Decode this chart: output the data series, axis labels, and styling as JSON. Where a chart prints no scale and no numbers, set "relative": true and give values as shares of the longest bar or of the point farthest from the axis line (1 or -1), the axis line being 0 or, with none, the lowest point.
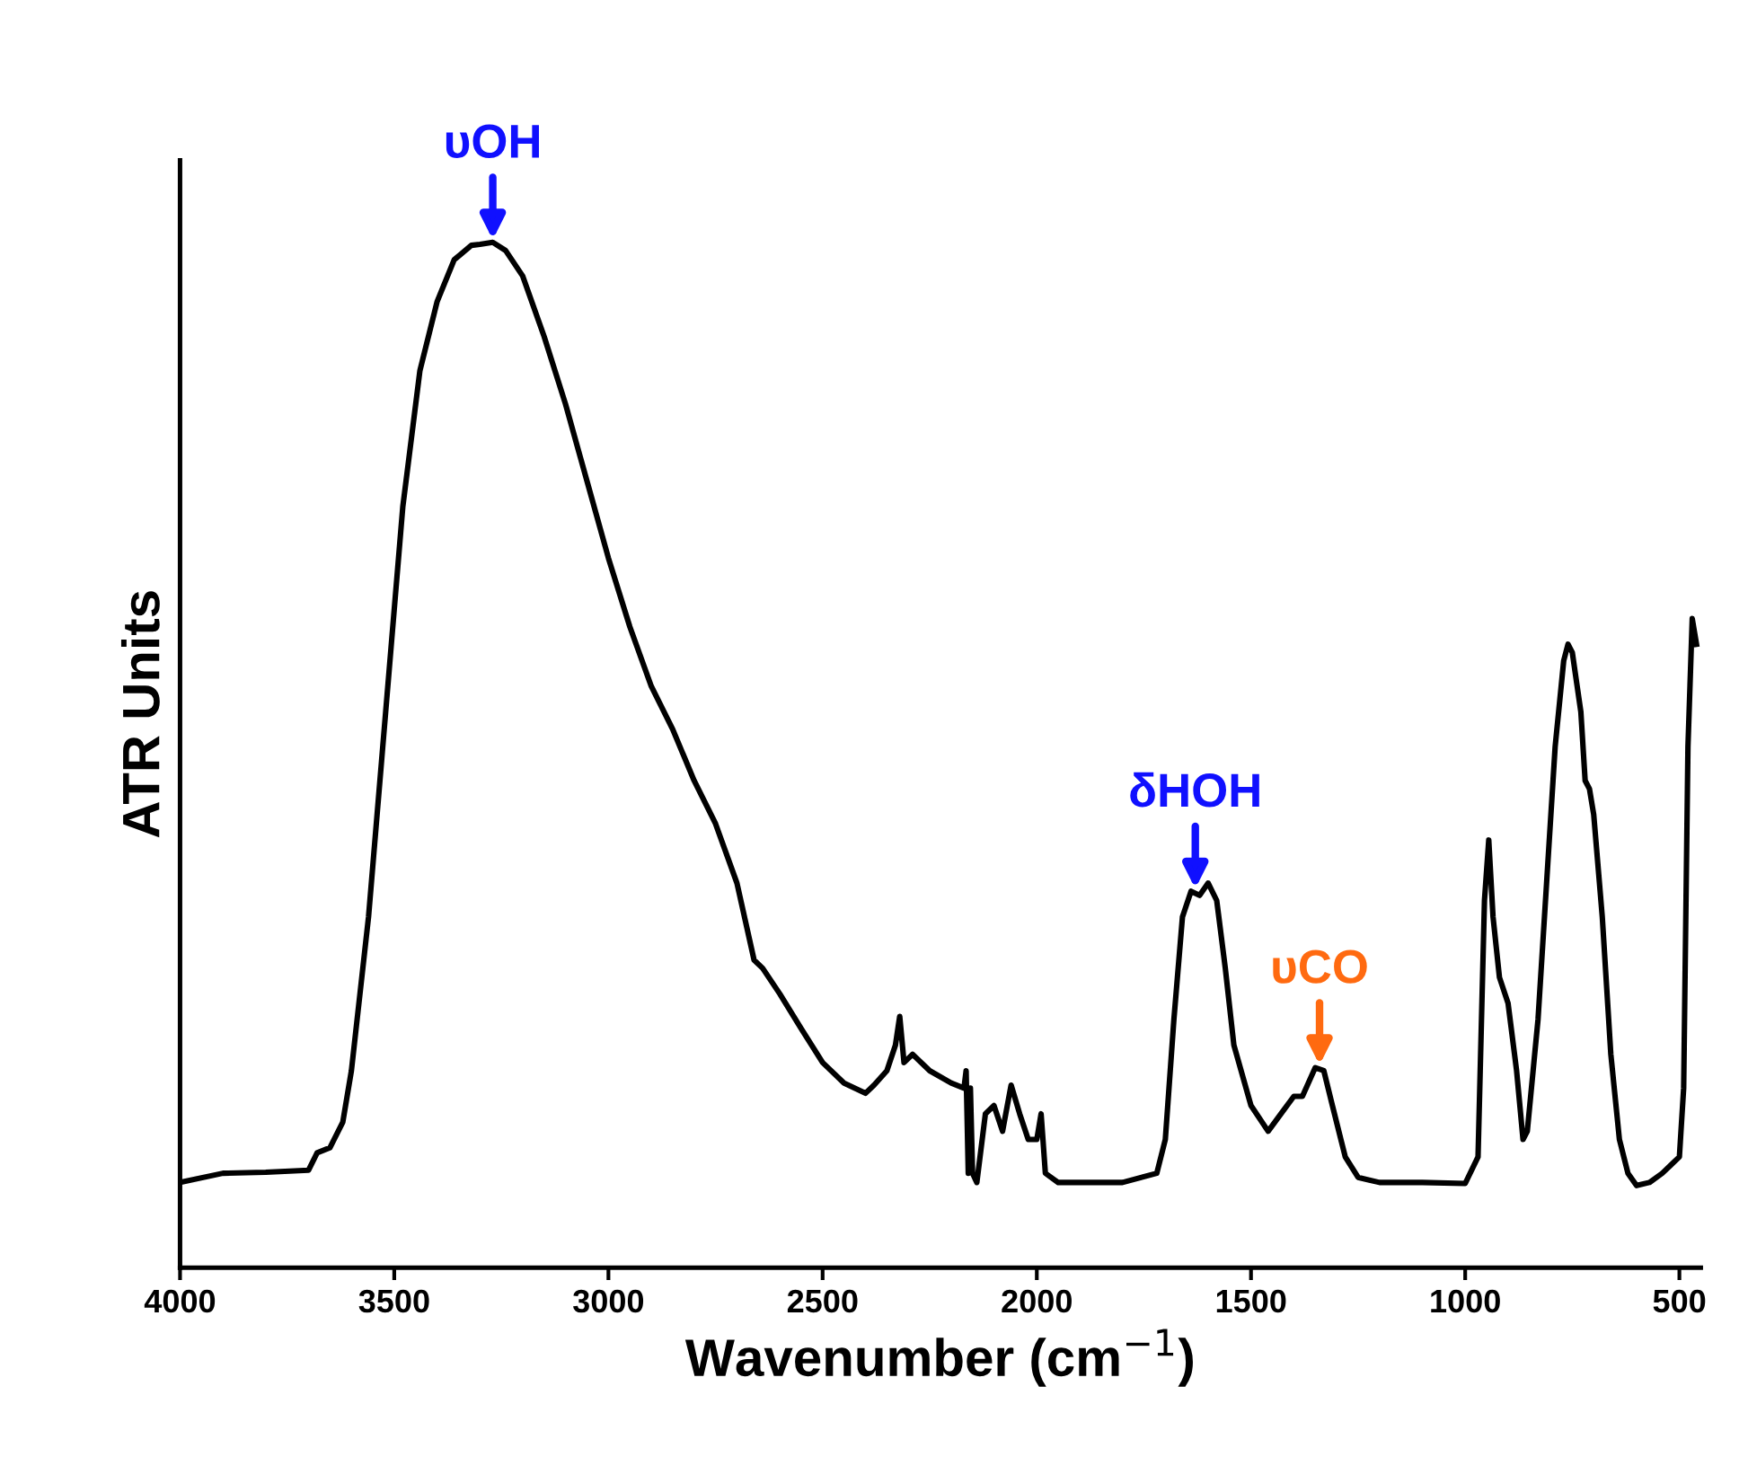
{
  "chart_data": {
    "type": "line",
    "relative": true,
    "xlabel": "Wavenumber (cm$^{−1}$)",
    "ylabel": "ATR Units",
    "xlim": [
      4000,
      450
    ],
    "xticks": [
      4000,
      3500,
      3000,
      2500,
      2000,
      1500,
      1000,
      500
    ],
    "tick_labels": "x",
    "grid": false,
    "legend": false,
    "series": [
      {
        "color": "#000000",
        "x": [
          4000,
          3900,
          3800,
          3700,
          3680,
          3650,
          3620,
          3600,
          3560,
          3520,
          3480,
          3440,
          3400,
          3360,
          3320,
          3300,
          3270,
          3240,
          3200,
          3150,
          3100,
          3050,
          3000,
          2950,
          2900,
          2850,
          2800,
          2750,
          2700,
          2660,
          2640,
          2600,
          2550,
          2500,
          2450,
          2400,
          2380,
          2350,
          2330,
          2320,
          2310,
          2290,
          2250,
          2200,
          2170,
          2165,
          2160,
          2155,
          2150,
          2140,
          2120,
          2100,
          2080,
          2060,
          2040,
          2020,
          2000,
          1990,
          1980,
          1950,
          1900,
          1800,
          1720,
          1700,
          1680,
          1660,
          1640,
          1620,
          1600,
          1580,
          1560,
          1540,
          1500,
          1460,
          1430,
          1400,
          1380,
          1350,
          1330,
          1310,
          1280,
          1250,
          1200,
          1100,
          1000,
          970,
          955,
          945,
          935,
          920,
          900,
          880,
          865,
          855,
          830,
          810,
          790,
          770,
          760,
          750,
          730,
          720,
          710,
          700,
          680,
          660,
          640,
          620,
          600,
          570,
          540,
          520,
          500,
          490,
          480,
          470,
          460
        ],
        "values": [
          0.083,
          0.092,
          0.093,
          0.095,
          0.112,
          0.117,
          0.142,
          0.192,
          0.342,
          0.542,
          0.742,
          0.875,
          0.942,
          0.983,
          0.997,
          0.998,
          1.0,
          0.992,
          0.967,
          0.908,
          0.842,
          0.767,
          0.692,
          0.625,
          0.567,
          0.525,
          0.475,
          0.433,
          0.375,
          0.3,
          0.292,
          0.267,
          0.233,
          0.2,
          0.18,
          0.17,
          0.178,
          0.192,
          0.217,
          0.245,
          0.2,
          0.208,
          0.192,
          0.18,
          0.175,
          0.192,
          0.092,
          0.175,
          0.092,
          0.083,
          0.15,
          0.158,
          0.133,
          0.178,
          0.15,
          0.125,
          0.125,
          0.15,
          0.092,
          0.083,
          0.083,
          0.083,
          0.092,
          0.125,
          0.242,
          0.342,
          0.367,
          0.363,
          0.375,
          0.358,
          0.292,
          0.217,
          0.158,
          0.133,
          0.15,
          0.167,
          0.167,
          0.195,
          0.192,
          0.158,
          0.108,
          0.088,
          0.083,
          0.083,
          0.082,
          0.108,
          0.358,
          0.417,
          0.342,
          0.283,
          0.258,
          0.192,
          0.125,
          0.133,
          0.242,
          0.375,
          0.508,
          0.592,
          0.608,
          0.6,
          0.542,
          0.475,
          0.467,
          0.442,
          0.342,
          0.208,
          0.125,
          0.092,
          0.08,
          0.083,
          0.092,
          0.1,
          0.108,
          0.175,
          0.508,
          0.633,
          0.608
        ]
      }
    ],
    "annotations": [
      {
        "text": "υOH",
        "x": 3270,
        "y": 1.0
      },
      {
        "text": "δHOH",
        "x": 1630,
        "y": 0.367
      },
      {
        "text": "υCO",
        "x": 1340,
        "y": 0.195
      }
    ]
  }
}
